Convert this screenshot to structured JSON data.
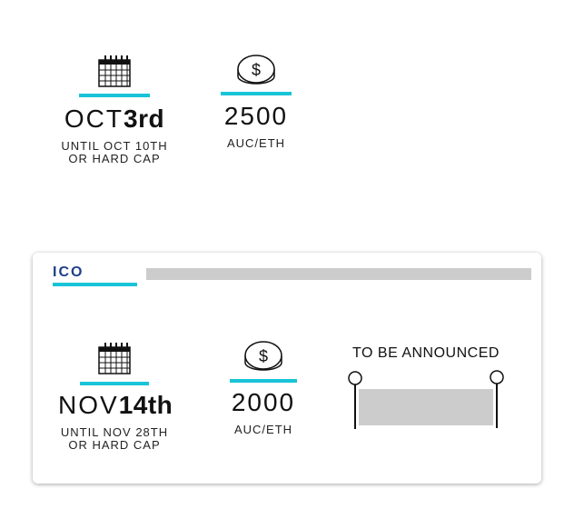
{
  "phase1": {
    "date": {
      "month": "OCT",
      "day": "3rd",
      "note_line1": "UNTIL OCT 10TH",
      "note_line2": "OR HARD CAP"
    },
    "rate": {
      "value": "2500",
      "unit": "AUC/ETH"
    }
  },
  "ico": {
    "title": "ICO",
    "date": {
      "month": "NOV",
      "day": "14th",
      "note_line1": "UNTIL NOV 28TH",
      "note_line2": "OR HARD CAP"
    },
    "rate": {
      "value": "2000",
      "unit": "AUC/ETH"
    },
    "banner": {
      "text": "TO BE ANNOUNCED"
    }
  },
  "icons": {
    "calendar": "calendar-icon",
    "coin": "dollar-coin-icon"
  },
  "colors": {
    "accent": "#19c4d8",
    "title": "#1e3f8a"
  }
}
